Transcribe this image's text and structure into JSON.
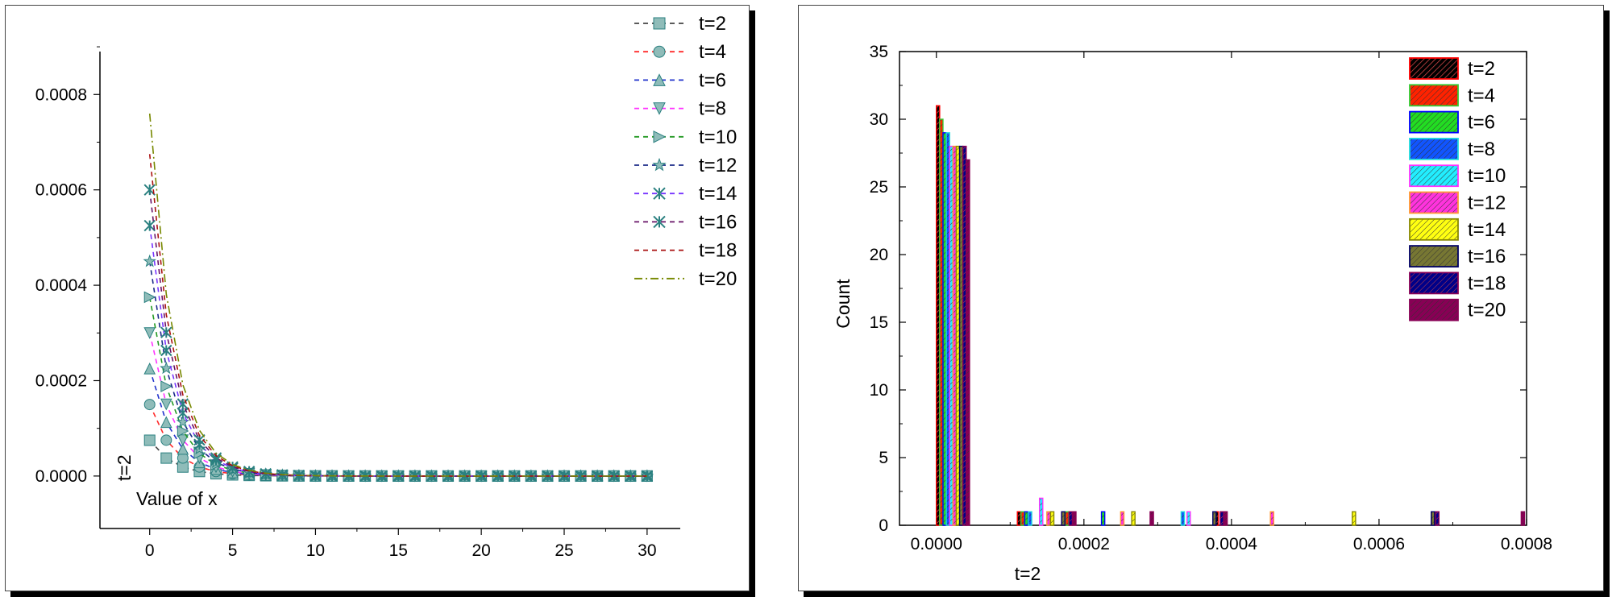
{
  "chart_data": [
    {
      "type": "line",
      "title": "",
      "xlabel": "Value of x",
      "ylabel": "t=2",
      "xlim": [
        -3,
        32
      ],
      "ylim": [
        -0.00011,
        0.00089
      ],
      "x_ticks": [
        "0",
        "5",
        "10",
        "15",
        "20",
        "25",
        "30"
      ],
      "x_tick_values": [
        0,
        5,
        10,
        15,
        20,
        25,
        30
      ],
      "y_ticks": [
        "0.0000",
        "0.0002",
        "0.0004",
        "0.0006",
        "0.0008"
      ],
      "y_tick_values": [
        0,
        0.0002,
        0.0004,
        0.0006,
        0.0008
      ],
      "x": [
        0,
        1,
        2,
        3,
        4,
        5,
        6,
        7,
        8,
        9,
        10,
        11,
        12,
        13,
        14,
        15,
        16,
        17,
        18,
        19,
        20,
        21,
        22,
        23,
        24,
        25,
        26,
        27,
        28,
        29,
        30
      ],
      "legend_position": "top-right",
      "series": [
        {
          "name": "t=2",
          "color": "#444444",
          "marker": "square",
          "y0": 7.5e-05
        },
        {
          "name": "t=4",
          "color": "#ff2a2a",
          "marker": "circle",
          "y0": 0.00015
        },
        {
          "name": "t=6",
          "color": "#2233cc",
          "marker": "triangle-up",
          "y0": 0.000225
        },
        {
          "name": "t=8",
          "color": "#ff33ff",
          "marker": "triangle-down",
          "y0": 0.0003
        },
        {
          "name": "t=10",
          "color": "#229922",
          "marker": "triangle-right",
          "y0": 0.000375
        },
        {
          "name": "t=12",
          "color": "#1a2a88",
          "marker": "star",
          "y0": 0.00045
        },
        {
          "name": "t=14",
          "color": "#7733ff",
          "marker": "x",
          "y0": 0.000525
        },
        {
          "name": "t=16",
          "color": "#661166",
          "marker": "x",
          "y0": 0.0006
        },
        {
          "name": "t=18",
          "color": "#aa1111",
          "marker": "none",
          "y0": 0.000675
        },
        {
          "name": "t=20",
          "color": "#778800",
          "marker": "none",
          "y0": 0.00076
        }
      ],
      "decay_rate": 0.69
    },
    {
      "type": "bar",
      "title": "",
      "xlabel": "t=2",
      "ylabel": "Count",
      "xlim": [
        -5e-05,
        0.0008
      ],
      "ylim": [
        0,
        35
      ],
      "x_ticks": [
        "0.0000",
        "0.0002",
        "0.0004",
        "0.0006",
        "0.0008"
      ],
      "x_tick_values": [
        0,
        0.0002,
        0.0004,
        0.0006,
        0.0008
      ],
      "y_ticks": [
        "0",
        "5",
        "10",
        "15",
        "20",
        "25",
        "30",
        "35"
      ],
      "y_tick_values": [
        0,
        5,
        10,
        15,
        20,
        25,
        30,
        35
      ],
      "bin_width": 4.5e-06,
      "legend_position": "top-right",
      "series": [
        {
          "name": "t=2",
          "fill": "#000000",
          "border": "#ff0000",
          "bars": [
            [
              2.2e-06,
              31
            ],
            [
              0.000112,
              1
            ],
            [
              0.000172,
              1
            ],
            [
              0.00038,
              1
            ]
          ]
        },
        {
          "name": "t=4",
          "fill": "#ff2200",
          "border": "#33cc33",
          "bars": [
            [
              6.7e-06,
              30
            ],
            [
              0.000117,
              1
            ],
            [
              0.000177,
              1
            ]
          ]
        },
        {
          "name": "t=6",
          "fill": "#22dd22",
          "border": "#0000ff",
          "bars": [
            [
              1.12e-05,
              29
            ],
            [
              0.000122,
              1
            ],
            [
              0.000226,
              1
            ]
          ]
        },
        {
          "name": "t=8",
          "fill": "#1155ff",
          "border": "#22dddd",
          "bars": [
            [
              1.57e-05,
              29
            ],
            [
              0.000127,
              1
            ],
            [
              0.000334,
              1
            ]
          ]
        },
        {
          "name": "t=10",
          "fill": "#22eeff",
          "border": "#ff33ff",
          "bars": [
            [
              2.02e-05,
              28
            ],
            [
              0.000142,
              2
            ],
            [
              0.000342,
              1
            ]
          ]
        },
        {
          "name": "t=12",
          "fill": "#ff33dd",
          "border": "#ff9933",
          "bars": [
            [
              2.47e-05,
              28
            ],
            [
              0.000152,
              1
            ],
            [
              0.000252,
              1
            ],
            [
              0.000455,
              1
            ]
          ]
        },
        {
          "name": "t=14",
          "fill": "#ffff11",
          "border": "#888800",
          "bars": [
            [
              2.92e-05,
              28
            ],
            [
              0.000157,
              1
            ],
            [
              0.000267,
              1
            ],
            [
              0.000566,
              1
            ]
          ]
        },
        {
          "name": "t=16",
          "fill": "#777733",
          "border": "#000066",
          "bars": [
            [
              3.37e-05,
              28
            ],
            [
              0.000172,
              1
            ],
            [
              0.000377,
              1
            ],
            [
              0.000673,
              1
            ]
          ]
        },
        {
          "name": "t=18",
          "fill": "#000088",
          "border": "#880055",
          "bars": [
            [
              3.82e-05,
              28
            ],
            [
              0.000182,
              1
            ],
            [
              0.000387,
              1
            ],
            [
              0.000679,
              1
            ]
          ]
        },
        {
          "name": "t=20",
          "fill": "#880055",
          "border": "#880055",
          "bars": [
            [
              4.27e-05,
              27
            ],
            [
              0.000187,
              1
            ],
            [
              0.000292,
              1
            ],
            [
              0.000392,
              1
            ],
            [
              0.000795,
              1
            ]
          ]
        }
      ]
    }
  ]
}
